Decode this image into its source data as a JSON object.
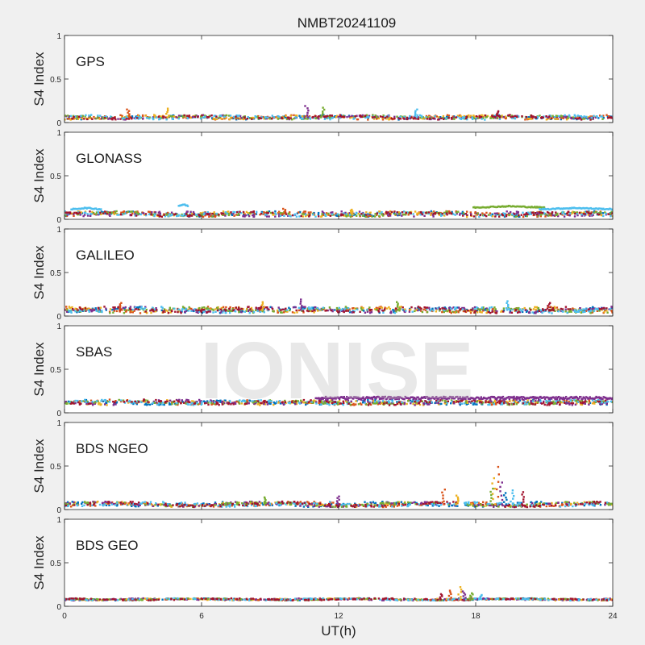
{
  "figure": {
    "title": "NMBT20241109",
    "watermark": "IONISE",
    "xlabel": "UT(h)",
    "xticks": [
      "0",
      "6",
      "12",
      "18",
      "24"
    ],
    "xlim": [
      0,
      24
    ]
  },
  "colors": {
    "background": "#f0f0f0",
    "axes_background": "#ffffff",
    "palette": [
      "#0072BD",
      "#D95319",
      "#EDB120",
      "#7E2F8E",
      "#77AC30",
      "#4DBEEE",
      "#A2142F"
    ]
  },
  "chart_data": [
    {
      "type": "scatter",
      "label": "GPS",
      "ylabel": "S4 Index",
      "ylim": [
        0,
        1
      ],
      "yticks": [
        "0",
        "0.5",
        "1"
      ],
      "baseline": 0.06,
      "noise": 0.025,
      "spikes": [
        {
          "x": 2.8,
          "y": 0.15
        },
        {
          "x": 4.5,
          "y": 0.16
        },
        {
          "x": 10.6,
          "y": 0.19
        },
        {
          "x": 11.3,
          "y": 0.17
        },
        {
          "x": 15.4,
          "y": 0.15
        },
        {
          "x": 19.0,
          "y": 0.13
        }
      ]
    },
    {
      "type": "scatter",
      "label": "GLONASS",
      "ylabel": "S4 Index",
      "ylim": [
        0,
        1
      ],
      "yticks": [
        "0",
        "0.5",
        "1"
      ],
      "baseline": 0.06,
      "noise": 0.03,
      "arcs": [
        {
          "series": 5,
          "x0": 0.3,
          "x1": 1.6,
          "y": 0.13
        },
        {
          "series": 5,
          "x0": 5.0,
          "x1": 5.4,
          "y": 0.17
        },
        {
          "series": 4,
          "x0": 17.9,
          "x1": 21.0,
          "y": 0.15
        },
        {
          "series": 5,
          "x0": 20.8,
          "x1": 24.0,
          "y": 0.13
        }
      ],
      "spikes": [
        {
          "x": 9.6,
          "y": 0.12
        },
        {
          "x": 12.6,
          "y": 0.11
        }
      ]
    },
    {
      "type": "scatter",
      "label": "GALILEO",
      "ylabel": "S4 Index",
      "ylim": [
        0,
        1
      ],
      "yticks": [
        "0",
        "0.5",
        "1"
      ],
      "baseline": 0.07,
      "noise": 0.035,
      "spikes": [
        {
          "x": 2.5,
          "y": 0.15
        },
        {
          "x": 8.7,
          "y": 0.16
        },
        {
          "x": 10.4,
          "y": 0.19
        },
        {
          "x": 14.6,
          "y": 0.16
        },
        {
          "x": 19.4,
          "y": 0.17
        },
        {
          "x": 21.2,
          "y": 0.15
        }
      ]
    },
    {
      "type": "scatter",
      "label": "SBAS",
      "ylabel": "S4 Index",
      "ylim": [
        0,
        1
      ],
      "yticks": [
        "0",
        "0.5",
        "1"
      ],
      "baseline": 0.12,
      "noise": 0.03,
      "band": {
        "series": 3,
        "x0": 11.0,
        "x1": 24.0,
        "y": 0.17
      }
    },
    {
      "type": "scatter",
      "label": "BDS NGEO",
      "ylabel": "S4 Index",
      "ylim": [
        0,
        1
      ],
      "yticks": [
        "0",
        "0.5",
        "1"
      ],
      "baseline": 0.06,
      "noise": 0.03,
      "spikes": [
        {
          "x": 18.95,
          "y": 0.49
        },
        {
          "x": 18.8,
          "y": 0.36
        },
        {
          "x": 19.1,
          "y": 0.31
        },
        {
          "x": 18.7,
          "y": 0.24
        },
        {
          "x": 19.6,
          "y": 0.22
        },
        {
          "x": 20.1,
          "y": 0.2
        },
        {
          "x": 19.3,
          "y": 0.19
        },
        {
          "x": 16.6,
          "y": 0.23
        },
        {
          "x": 17.2,
          "y": 0.16
        },
        {
          "x": 12.0,
          "y": 0.15
        },
        {
          "x": 8.8,
          "y": 0.14
        }
      ]
    },
    {
      "type": "scatter",
      "label": "BDS GEO",
      "ylabel": "S4 Index",
      "ylim": [
        0,
        1
      ],
      "yticks": [
        "0",
        "0.5",
        "1"
      ],
      "baseline": 0.08,
      "noise": 0.012,
      "spikes": [
        {
          "x": 16.9,
          "y": 0.18
        },
        {
          "x": 17.3,
          "y": 0.22
        },
        {
          "x": 17.5,
          "y": 0.17
        },
        {
          "x": 17.8,
          "y": 0.15
        },
        {
          "x": 18.2,
          "y": 0.13
        },
        {
          "x": 16.5,
          "y": 0.14
        }
      ]
    }
  ]
}
